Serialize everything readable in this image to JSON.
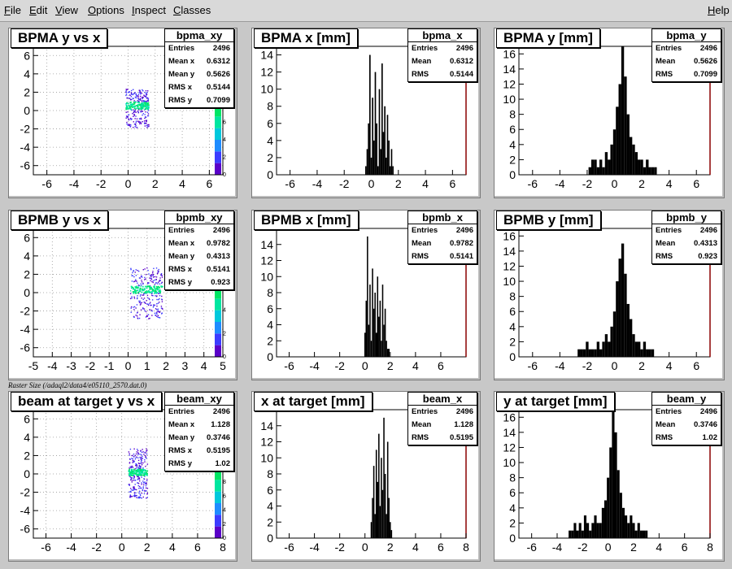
{
  "menu": {
    "file": "File",
    "edit": "Edit",
    "view": "View",
    "options": "Options",
    "inspect": "Inspect",
    "classes": "Classes",
    "help": "Help"
  },
  "caption": "Raster Size (/adaql2/data4/e05110_2570.dat.0)",
  "colors": {
    "frame": "#000000",
    "axis_right": "#8b0000",
    "palette": [
      "#5a00c8",
      "#3c3cff",
      "#1e8cff",
      "#00c8dc",
      "#00e6a0",
      "#00e664"
    ]
  },
  "chart_data": [
    {
      "type": "heatmap",
      "title": "BPMA y vs x",
      "stat_name": "bpma_xy",
      "stats": [
        [
          "Entries",
          "2496"
        ],
        [
          "Mean x",
          "0.6312"
        ],
        [
          "Mean y",
          "0.5626"
        ],
        [
          "RMS x",
          "0.5144"
        ],
        [
          "RMS y",
          "0.7099"
        ]
      ],
      "xlim": [
        -7,
        7
      ],
      "ylim": [
        -7,
        7
      ],
      "xticks": [
        -6,
        -4,
        -2,
        0,
        2,
        4,
        6
      ],
      "yticks": [
        -6,
        -4,
        -2,
        0,
        2,
        4,
        6
      ],
      "cluster": {
        "x_range": [
          -0.2,
          1.5
        ],
        "y_range": [
          -1.8,
          2.4
        ],
        "core_y_range": [
          0.2,
          1.0
        ]
      },
      "palette_ticks": [
        0,
        2,
        4,
        6,
        8
      ]
    },
    {
      "type": "bar",
      "title": "BPMA x [mm]",
      "stat_name": "bpma_x",
      "stats": [
        [
          "Entries",
          "2496"
        ],
        [
          "Mean",
          "0.6312"
        ],
        [
          "RMS",
          "0.5144"
        ]
      ],
      "xlim": [
        -7,
        7
      ],
      "ylim": [
        0,
        15
      ],
      "xticks": [
        -6,
        -4,
        -2,
        0,
        2,
        4,
        6
      ],
      "yticks": [
        0,
        2,
        4,
        6,
        8,
        10,
        12,
        14
      ],
      "x": [
        -0.4,
        -0.3,
        -0.2,
        -0.1,
        0.0,
        0.1,
        0.2,
        0.3,
        0.4,
        0.5,
        0.6,
        0.7,
        0.8,
        0.9,
        1.0,
        1.1,
        1.2,
        1.3,
        1.4,
        1.5,
        1.6
      ],
      "values": [
        1,
        3,
        6,
        14,
        2,
        9,
        4,
        12,
        6,
        1,
        10,
        3,
        13,
        5,
        8,
        2,
        7,
        4,
        1,
        3,
        1
      ]
    },
    {
      "type": "bar",
      "title": "BPMA y [mm]",
      "stat_name": "bpma_y",
      "stats": [
        [
          "Entries",
          "2496"
        ],
        [
          "Mean",
          "0.5626"
        ],
        [
          "RMS",
          "0.7099"
        ]
      ],
      "xlim": [
        -7,
        7
      ],
      "ylim": [
        0,
        17
      ],
      "xticks": [
        -6,
        -4,
        -2,
        0,
        2,
        4,
        6
      ],
      "yticks": [
        0,
        2,
        4,
        6,
        8,
        10,
        12,
        14,
        16
      ],
      "x": [
        -1.8,
        -1.6,
        -1.4,
        -1.2,
        -1.0,
        -0.8,
        -0.6,
        -0.4,
        -0.2,
        0.0,
        0.2,
        0.4,
        0.6,
        0.8,
        1.0,
        1.2,
        1.4,
        1.6,
        1.8,
        2.0,
        2.2,
        2.4,
        2.6,
        2.8,
        3.0
      ],
      "values": [
        1,
        2,
        2,
        1,
        2,
        1,
        3,
        2,
        4,
        6,
        9,
        12,
        17,
        13,
        8,
        5,
        4,
        3,
        2,
        2,
        1,
        2,
        1,
        1,
        1
      ]
    },
    {
      "type": "heatmap",
      "title": "BPMB y vs x",
      "stat_name": "bpmb_xy",
      "stats": [
        [
          "Entries",
          "2496"
        ],
        [
          "Mean x",
          "0.9782"
        ],
        [
          "Mean y",
          "0.4313"
        ],
        [
          "RMS x",
          "0.5141"
        ],
        [
          "RMS y",
          "0.923"
        ]
      ],
      "xlim": [
        -5,
        5
      ],
      "ylim": [
        -7,
        7
      ],
      "xticks": [
        -5,
        -4,
        -3,
        -2,
        -1,
        0,
        1,
        2,
        3,
        4,
        5
      ],
      "yticks": [
        -6,
        -4,
        -2,
        0,
        2,
        4,
        6
      ],
      "cluster": {
        "x_range": [
          0.1,
          1.8
        ],
        "y_range": [
          -2.8,
          2.8
        ],
        "core_y_range": [
          0.0,
          0.8
        ]
      },
      "palette_ticks": [
        0,
        2,
        4,
        6
      ]
    },
    {
      "type": "bar",
      "title": "BPMB x [mm]",
      "stat_name": "bpmb_x",
      "stats": [
        [
          "Entries",
          "2496"
        ],
        [
          "Mean",
          "0.9782"
        ],
        [
          "RMS",
          "0.5141"
        ]
      ],
      "xlim": [
        -7,
        8
      ],
      "ylim": [
        0,
        16
      ],
      "xticks": [
        -6,
        -4,
        -2,
        0,
        2,
        4,
        6
      ],
      "yticks": [
        0,
        2,
        4,
        6,
        8,
        10,
        12,
        14
      ],
      "x": [
        0.0,
        0.1,
        0.2,
        0.3,
        0.4,
        0.5,
        0.6,
        0.7,
        0.8,
        0.9,
        1.0,
        1.1,
        1.2,
        1.3,
        1.4,
        1.5,
        1.6,
        1.7,
        1.8,
        1.9
      ],
      "values": [
        3,
        7,
        15,
        4,
        9,
        2,
        11,
        6,
        8,
        3,
        10,
        5,
        7,
        2,
        9,
        4,
        6,
        2,
        1,
        1
      ]
    },
    {
      "type": "bar",
      "title": "BPMB y [mm]",
      "stat_name": "bpmb_y",
      "stats": [
        [
          "Entries",
          "2496"
        ],
        [
          "Mean",
          "0.4313"
        ],
        [
          "RMS",
          "0.923"
        ]
      ],
      "xlim": [
        -7,
        7
      ],
      "ylim": [
        0,
        17
      ],
      "xticks": [
        -6,
        -4,
        -2,
        0,
        2,
        4,
        6
      ],
      "yticks": [
        0,
        2,
        4,
        6,
        8,
        10,
        12,
        14,
        16
      ],
      "x": [
        -2.6,
        -2.4,
        -2.2,
        -2.0,
        -1.8,
        -1.6,
        -1.4,
        -1.2,
        -1.0,
        -0.8,
        -0.6,
        -0.4,
        -0.2,
        0.0,
        0.2,
        0.4,
        0.6,
        0.8,
        1.0,
        1.2,
        1.4,
        1.6,
        1.8,
        2.0,
        2.2,
        2.4,
        2.6,
        2.8
      ],
      "values": [
        1,
        1,
        1,
        2,
        1,
        1,
        1,
        2,
        1,
        2,
        3,
        2,
        4,
        6,
        10,
        13,
        15,
        11,
        7,
        5,
        3,
        2,
        2,
        1,
        2,
        1,
        1,
        1
      ]
    },
    {
      "type": "heatmap",
      "title": "beam at target y vs x",
      "stat_name": "beam_xy",
      "stats": [
        [
          "Entries",
          "2496"
        ],
        [
          "Mean x",
          "1.128"
        ],
        [
          "Mean y",
          "0.3746"
        ],
        [
          "RMS x",
          "0.5195"
        ],
        [
          "RMS y",
          "1.02"
        ]
      ],
      "xlim": [
        -7,
        8
      ],
      "ylim": [
        -7,
        7
      ],
      "xticks": [
        -6,
        -4,
        -2,
        0,
        2,
        4,
        6,
        8
      ],
      "yticks": [
        -6,
        -4,
        -2,
        0,
        2,
        4,
        6
      ],
      "cluster": {
        "x_range": [
          0.5,
          2.0
        ],
        "y_range": [
          -2.6,
          2.8
        ],
        "core_y_range": [
          -0.1,
          0.6
        ]
      },
      "palette_ticks": [
        0,
        2,
        4,
        6,
        8,
        10
      ]
    },
    {
      "type": "bar",
      "title": "x at target [mm]",
      "stat_name": "beam_x",
      "stats": [
        [
          "Entries",
          "2496"
        ],
        [
          "Mean",
          "1.128"
        ],
        [
          "RMS",
          "0.5195"
        ]
      ],
      "xlim": [
        -7,
        8
      ],
      "ylim": [
        0,
        16
      ],
      "xticks": [
        -6,
        -4,
        -2,
        0,
        2,
        4,
        6,
        8
      ],
      "yticks": [
        0,
        2,
        4,
        6,
        8,
        10,
        12,
        14
      ],
      "x": [
        0.5,
        0.6,
        0.7,
        0.8,
        0.9,
        1.0,
        1.1,
        1.2,
        1.3,
        1.4,
        1.5,
        1.6,
        1.7,
        1.8,
        1.9,
        2.0,
        2.1
      ],
      "values": [
        2,
        5,
        9,
        3,
        11,
        7,
        13,
        4,
        10,
        6,
        15,
        8,
        3,
        12,
        5,
        2,
        1
      ]
    },
    {
      "type": "bar",
      "title": "y at target [mm]",
      "stat_name": "beam_y",
      "stats": [
        [
          "Entries",
          "2496"
        ],
        [
          "Mean",
          "0.3746"
        ],
        [
          "RMS",
          "1.02"
        ]
      ],
      "xlim": [
        -7,
        8
      ],
      "ylim": [
        0,
        17
      ],
      "xticks": [
        -6,
        -4,
        -2,
        0,
        2,
        4,
        6,
        8
      ],
      "yticks": [
        0,
        2,
        4,
        6,
        8,
        10,
        12,
        14,
        16
      ],
      "x": [
        -3.0,
        -2.8,
        -2.6,
        -2.4,
        -2.2,
        -2.0,
        -1.8,
        -1.6,
        -1.4,
        -1.2,
        -1.0,
        -0.8,
        -0.6,
        -0.4,
        -0.2,
        0.0,
        0.2,
        0.4,
        0.6,
        0.8,
        1.0,
        1.2,
        1.4,
        1.6,
        1.8,
        2.0,
        2.2,
        2.4,
        2.6,
        2.8,
        3.0
      ],
      "values": [
        1,
        1,
        2,
        1,
        2,
        1,
        3,
        2,
        1,
        2,
        3,
        2,
        2,
        4,
        5,
        8,
        12,
        17,
        14,
        9,
        6,
        4,
        3,
        2,
        3,
        2,
        1,
        2,
        1,
        1,
        1
      ]
    }
  ]
}
